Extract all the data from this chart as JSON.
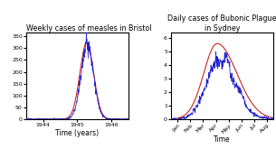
{
  "left_title": "Weekly cases of measles in Bristol",
  "left_xlabel": "Time (years)",
  "left_xticks": [
    1944,
    1945,
    1946
  ],
  "left_yticks": [
    0,
    50,
    100,
    150,
    200,
    250,
    300,
    350
  ],
  "left_ylim": [
    0,
    365
  ],
  "left_xlim": [
    1943.5,
    1946.5
  ],
  "right_title": "Daily cases of Bubonic Plague\nin Sydney",
  "right_xlabel": "Time",
  "right_xticks": [
    "Jan",
    "Feb",
    "Mar",
    "Apr",
    "May",
    "Jun",
    "Jul",
    "Aug"
  ],
  "right_yticks": [
    0,
    1,
    2,
    3,
    4,
    5,
    6
  ],
  "right_ylim": [
    0,
    6.4
  ],
  "blue_color": "#2222cc",
  "red_color": "#cc2222",
  "title_fontsize": 5.8,
  "tick_fontsize": 4.5,
  "label_fontsize": 5.5
}
